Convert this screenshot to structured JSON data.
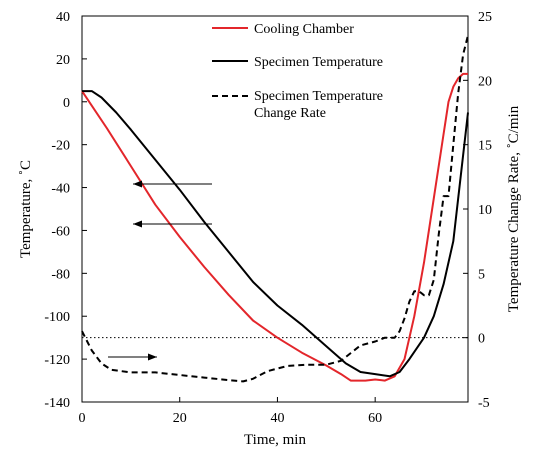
{
  "chart_data": {
    "type": "line",
    "title": "",
    "xlabel": "Time, min",
    "ylabel": "Temperature, ˚C",
    "y2label": "Temperature Change Rate, ˚C/min",
    "xlim": [
      0,
      79
    ],
    "ylim": [
      -140,
      40
    ],
    "y2lim": [
      -5,
      25
    ],
    "x_ticks": [
      0,
      20,
      40,
      60
    ],
    "x_tick_labels": [
      "0",
      "20",
      "40",
      "60"
    ],
    "y_ticks": [
      40,
      20,
      0,
      -20,
      -40,
      -60,
      -80,
      -100,
      -120,
      -140
    ],
    "y_tick_labels": [
      "40",
      "20",
      "0",
      "-20",
      "-40",
      "-60",
      "-80",
      "-100",
      "-120",
      "-140"
    ],
    "y2_ticks": [
      25,
      20,
      15,
      10,
      5,
      0,
      -5
    ],
    "y2_tick_labels": [
      "25",
      "20",
      "15",
      "10",
      "5",
      "0",
      "-5"
    ],
    "grid": false,
    "legend_position": "top-right",
    "reference_line": {
      "axis": "y2",
      "value": 0,
      "style": "dotted"
    },
    "series": [
      {
        "name": "Cooling Chamber",
        "axis": "left",
        "color": "#e3262b",
        "dash": "solid",
        "points": [
          [
            0,
            5
          ],
          [
            5,
            -12
          ],
          [
            10,
            -30
          ],
          [
            15,
            -48
          ],
          [
            20,
            -63
          ],
          [
            25,
            -77
          ],
          [
            30,
            -90
          ],
          [
            35,
            -102
          ],
          [
            40,
            -110
          ],
          [
            45,
            -117
          ],
          [
            50,
            -123
          ],
          [
            53,
            -127
          ],
          [
            55,
            -130
          ],
          [
            58,
            -130
          ],
          [
            60,
            -129.5
          ],
          [
            62,
            -130
          ],
          [
            64,
            -128
          ],
          [
            66,
            -120
          ],
          [
            68,
            -100
          ],
          [
            70,
            -75
          ],
          [
            72,
            -45
          ],
          [
            74,
            -15
          ],
          [
            75,
            0
          ],
          [
            76,
            7
          ],
          [
            77,
            11
          ],
          [
            78,
            13
          ],
          [
            79,
            13
          ]
        ]
      },
      {
        "name": "Specimen Temperature",
        "axis": "left",
        "color": "#000000",
        "dash": "solid",
        "points": [
          [
            0,
            5
          ],
          [
            2,
            5
          ],
          [
            4,
            2
          ],
          [
            7,
            -5
          ],
          [
            10,
            -13
          ],
          [
            15,
            -27
          ],
          [
            20,
            -41
          ],
          [
            25,
            -56
          ],
          [
            30,
            -70
          ],
          [
            35,
            -84
          ],
          [
            40,
            -95
          ],
          [
            45,
            -104
          ],
          [
            50,
            -114
          ],
          [
            54,
            -122
          ],
          [
            57,
            -126
          ],
          [
            60,
            -127
          ],
          [
            63,
            -128
          ],
          [
            65,
            -126
          ],
          [
            67,
            -120
          ],
          [
            70,
            -110
          ],
          [
            72,
            -100
          ],
          [
            74,
            -85
          ],
          [
            76,
            -65
          ],
          [
            77,
            -45
          ],
          [
            78,
            -25
          ],
          [
            79,
            -5
          ]
        ]
      },
      {
        "name": "Specimen Temperature\nChange Rate",
        "axis": "right",
        "color": "#000000",
        "dash": "dashed",
        "points": [
          [
            0,
            0.5
          ],
          [
            2,
            -1
          ],
          [
            4,
            -2
          ],
          [
            6,
            -2.5
          ],
          [
            10,
            -2.7
          ],
          [
            15,
            -2.7
          ],
          [
            20,
            -2.9
          ],
          [
            25,
            -3.1
          ],
          [
            30,
            -3.3
          ],
          [
            33,
            -3.4
          ],
          [
            35,
            -3.2
          ],
          [
            38,
            -2.6
          ],
          [
            42,
            -2.2
          ],
          [
            46,
            -2.1
          ],
          [
            50,
            -2.1
          ],
          [
            53,
            -1.8
          ],
          [
            55,
            -1.2
          ],
          [
            57,
            -0.6
          ],
          [
            60,
            -0.3
          ],
          [
            62,
            0
          ],
          [
            64,
            0
          ],
          [
            65,
            0.5
          ],
          [
            66,
            1.5
          ],
          [
            67,
            2.8
          ],
          [
            68,
            3.6
          ],
          [
            69,
            3.6
          ],
          [
            70,
            3.3
          ],
          [
            71,
            3.3
          ],
          [
            72,
            4.5
          ],
          [
            73,
            8
          ],
          [
            74,
            11
          ],
          [
            75,
            11
          ],
          [
            76,
            15
          ],
          [
            77,
            19
          ],
          [
            78,
            22
          ],
          [
            79,
            23.5
          ]
        ]
      }
    ],
    "annotations": [
      {
        "type": "arrow",
        "direction": "left",
        "points_to": "left axis"
      },
      {
        "type": "arrow",
        "direction": "left",
        "points_to": "left axis"
      },
      {
        "type": "arrow",
        "direction": "right",
        "points_to": "right axis"
      }
    ]
  }
}
